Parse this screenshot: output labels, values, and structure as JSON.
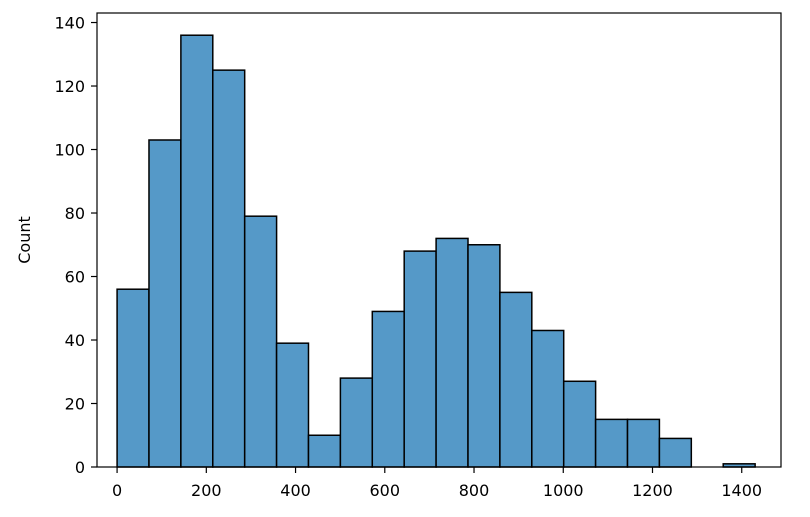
{
  "chart_data": {
    "type": "bar",
    "title": "",
    "xlabel": "",
    "ylabel": "Count",
    "xlim": [
      -45,
      1488
    ],
    "ylim": [
      0,
      143
    ],
    "x_ticks": [
      0,
      200,
      400,
      600,
      800,
      1000,
      1200,
      1400
    ],
    "y_ticks": [
      0,
      20,
      40,
      60,
      80,
      100,
      120,
      140
    ],
    "grid": false,
    "bin_width": 71.5,
    "bins": [
      {
        "x0": 0,
        "x1": 71.5,
        "count": 56
      },
      {
        "x0": 71.5,
        "x1": 143,
        "count": 103
      },
      {
        "x0": 143,
        "x1": 214.5,
        "count": 136
      },
      {
        "x0": 214.5,
        "x1": 286,
        "count": 125
      },
      {
        "x0": 286,
        "x1": 357.5,
        "count": 79
      },
      {
        "x0": 357.5,
        "x1": 429,
        "count": 39
      },
      {
        "x0": 429,
        "x1": 500.5,
        "count": 10
      },
      {
        "x0": 500.5,
        "x1": 572,
        "count": 28
      },
      {
        "x0": 572,
        "x1": 643.5,
        "count": 49
      },
      {
        "x0": 643.5,
        "x1": 715,
        "count": 68
      },
      {
        "x0": 715,
        "x1": 786.5,
        "count": 72
      },
      {
        "x0": 786.5,
        "x1": 858,
        "count": 70
      },
      {
        "x0": 858,
        "x1": 929.5,
        "count": 55
      },
      {
        "x0": 929.5,
        "x1": 1001,
        "count": 43
      },
      {
        "x0": 1001,
        "x1": 1072.5,
        "count": 27
      },
      {
        "x0": 1072.5,
        "x1": 1144,
        "count": 15
      },
      {
        "x0": 1144,
        "x1": 1215.5,
        "count": 15
      },
      {
        "x0": 1215.5,
        "x1": 1287,
        "count": 9
      },
      {
        "x0": 1287,
        "x1": 1358.5,
        "count": 0
      },
      {
        "x0": 1358.5,
        "x1": 1430,
        "count": 1
      }
    ],
    "colors": {
      "bar_fill": "#5599c8",
      "bar_edge": "#000000"
    }
  }
}
